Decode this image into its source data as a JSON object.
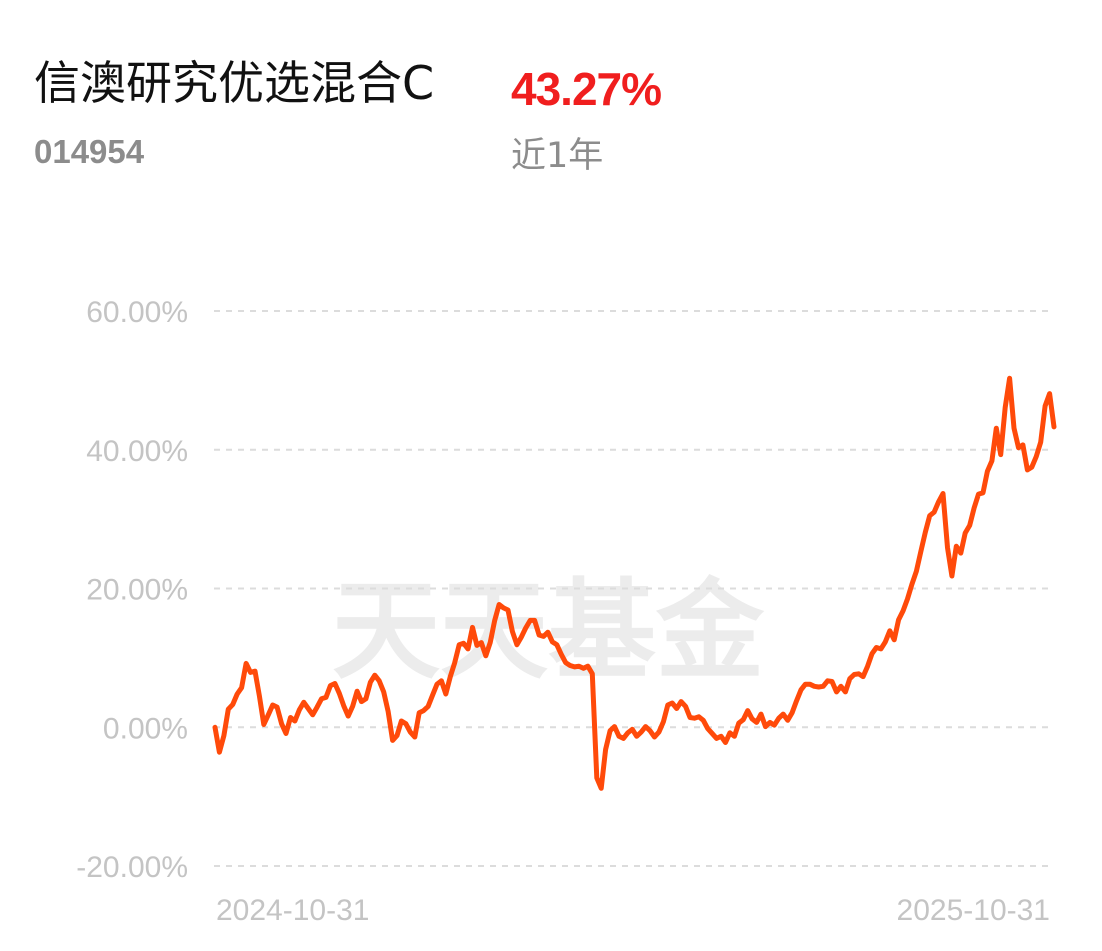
{
  "fund": {
    "name": "信澳研究优选混合C",
    "code": "014954",
    "return_value": "43.27%",
    "return_period": "近1年"
  },
  "watermark": "天天基金",
  "colors": {
    "line": "#ff4a0a",
    "return": "#f01e1e",
    "grid": "#dcdcdc",
    "tick": "#c4c4c4"
  },
  "chart_data": {
    "type": "line",
    "title": "",
    "xlabel": "",
    "ylabel": "",
    "x_tick_labels": [
      "2024-10-31",
      "2025-10-31"
    ],
    "y_tick_labels": [
      "60.00%",
      "40.00%",
      "20.00%",
      "0.00%",
      "-20.00%"
    ],
    "y_tick_values": [
      60,
      40,
      20,
      0,
      -20
    ],
    "ylim": [
      -20,
      60
    ],
    "grid": true,
    "grid_style": "dashed",
    "legend": "none",
    "series": [
      {
        "name": "",
        "color": "#ff4a0a",
        "values": [
          0,
          -3.6,
          -1.2,
          2.6,
          3.3,
          4.8,
          5.7,
          9.2,
          7.9,
          8.1,
          4.5,
          0.4,
          1.8,
          3.2,
          2.9,
          0.5,
          -0.9,
          1.4,
          0.9,
          2.5,
          3.6,
          2.7,
          1.8,
          2.9,
          4.1,
          4.3,
          6.0,
          6.3,
          4.9,
          3.1,
          1.6,
          3.0,
          5.2,
          3.7,
          4.1,
          6.5,
          7.5,
          6.7,
          5.1,
          2.3,
          -1.9,
          -1.2,
          0.9,
          0.5,
          -0.7,
          -1.4,
          2.1,
          2.4,
          3.0,
          4.6,
          6.2,
          6.7,
          4.8,
          7.3,
          9.3,
          11.9,
          12.1,
          11.3,
          14.4,
          11.8,
          12.2,
          10.3,
          12.2,
          15.4,
          17.7,
          17.2,
          16.9,
          13.8,
          11.9,
          13.0,
          14.3,
          15.4,
          15.4,
          13.3,
          13.1,
          13.7,
          12.3,
          11.9,
          10.5,
          9.3,
          8.9,
          8.7,
          8.8,
          8.5,
          8.8,
          7.7,
          -7.3,
          -8.8,
          -3.2,
          -0.5,
          0.1,
          -1.3,
          -1.6,
          -0.8,
          -0.3,
          -1.3,
          -0.7,
          0.1,
          -0.5,
          -1.4,
          -0.7,
          0.8,
          3.2,
          3.5,
          2.7,
          3.7,
          3.0,
          1.4,
          1.3,
          1.5,
          1.0,
          -0.2,
          -0.9,
          -1.6,
          -1.3,
          -2.2,
          -0.8,
          -1.3,
          0.6,
          1.1,
          2.4,
          1.2,
          0.7,
          1.9,
          0.1,
          0.7,
          0.3,
          1.3,
          1.9,
          1.0,
          2.1,
          3.8,
          5.4,
          6.2,
          6.2,
          5.9,
          5.8,
          5.9,
          6.7,
          6.6,
          5.1,
          5.9,
          5.1,
          7.0,
          7.6,
          7.7,
          7.3,
          8.8,
          10.6,
          11.5,
          11.3,
          12.3,
          13.9,
          12.6,
          15.5,
          16.8,
          18.5,
          20.6,
          22.5,
          25.3,
          28.1,
          30.5,
          31.0,
          32.5,
          33.7,
          25.9,
          21.8,
          26.1,
          25.1,
          28.0,
          29.1,
          31.6,
          33.6,
          33.8,
          36.9,
          38.4,
          43.1,
          39.3,
          46.1,
          50.3,
          43.1,
          40.3,
          40.7,
          37.1,
          37.5,
          39.0,
          41.1,
          46.3,
          48.1,
          43.3
        ]
      }
    ]
  }
}
